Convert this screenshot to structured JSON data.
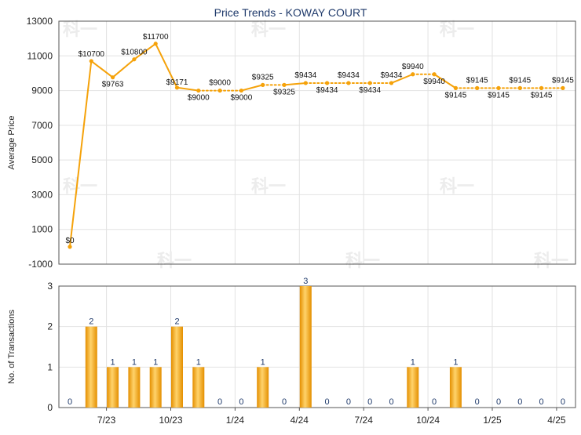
{
  "chart_data": {
    "title": "Price Trends - KOWAY COURT",
    "x_tick_labels": [
      "7/23",
      "10/23",
      "1/24",
      "4/24",
      "7/24",
      "10/24",
      "1/25",
      "4/25"
    ],
    "watermark": "科一",
    "price_chart": {
      "type": "line",
      "ylabel": "Average Price",
      "ylim": [
        -1000,
        13000
      ],
      "yticks": [
        -1000,
        1000,
        3000,
        5000,
        7000,
        9000,
        11000,
        13000
      ],
      "color": "#f5a20a",
      "points": [
        {
          "period": 0,
          "value": 0,
          "label": "$0"
        },
        {
          "period": 1,
          "value": 10700,
          "label": "$10700"
        },
        {
          "period": 2,
          "value": 9763,
          "label": "$9763"
        },
        {
          "period": 3,
          "value": 10800,
          "label": "$10800"
        },
        {
          "period": 4,
          "value": 11700,
          "label": "$11700"
        },
        {
          "period": 5,
          "value": 9171,
          "label": "$9171"
        },
        {
          "period": 6,
          "value": 9000,
          "label": "$9000"
        },
        {
          "period": 7,
          "value": 9000,
          "label": "$9000"
        },
        {
          "period": 8,
          "value": 9000,
          "label": "$9000"
        },
        {
          "period": 9,
          "value": 9325,
          "label": "$9325"
        },
        {
          "period": 10,
          "value": 9325,
          "label": "$9325"
        },
        {
          "period": 11,
          "value": 9434,
          "label": "$9434"
        },
        {
          "period": 12,
          "value": 9434,
          "label": "$9434"
        },
        {
          "period": 13,
          "value": 9434,
          "label": "$9434"
        },
        {
          "period": 14,
          "value": 9434,
          "label": "$9434"
        },
        {
          "period": 15,
          "value": 9434,
          "label": "$9434"
        },
        {
          "period": 16,
          "value": 9940,
          "label": "$9940"
        },
        {
          "period": 17,
          "value": 9940,
          "label": "$9940"
        },
        {
          "period": 18,
          "value": 9145,
          "label": "$9145"
        },
        {
          "period": 19,
          "value": 9145,
          "label": "$9145"
        },
        {
          "period": 20,
          "value": 9145,
          "label": "$9145"
        },
        {
          "period": 21,
          "value": 9145,
          "label": "$9145"
        },
        {
          "period": 22,
          "value": 9145,
          "label": "$9145"
        },
        {
          "period": 23,
          "value": 9145,
          "label": "$9145"
        }
      ]
    },
    "transactions_chart": {
      "type": "bar",
      "ylabel": "No. of Transactions",
      "ylim": [
        0,
        3
      ],
      "yticks": [
        0,
        1,
        2,
        3
      ],
      "color": "#f5a20a",
      "values": [
        0,
        2,
        1,
        1,
        1,
        2,
        1,
        0,
        0,
        1,
        0,
        3,
        0,
        0,
        0,
        0,
        1,
        0,
        1,
        0,
        0,
        0,
        0,
        0
      ]
    }
  }
}
